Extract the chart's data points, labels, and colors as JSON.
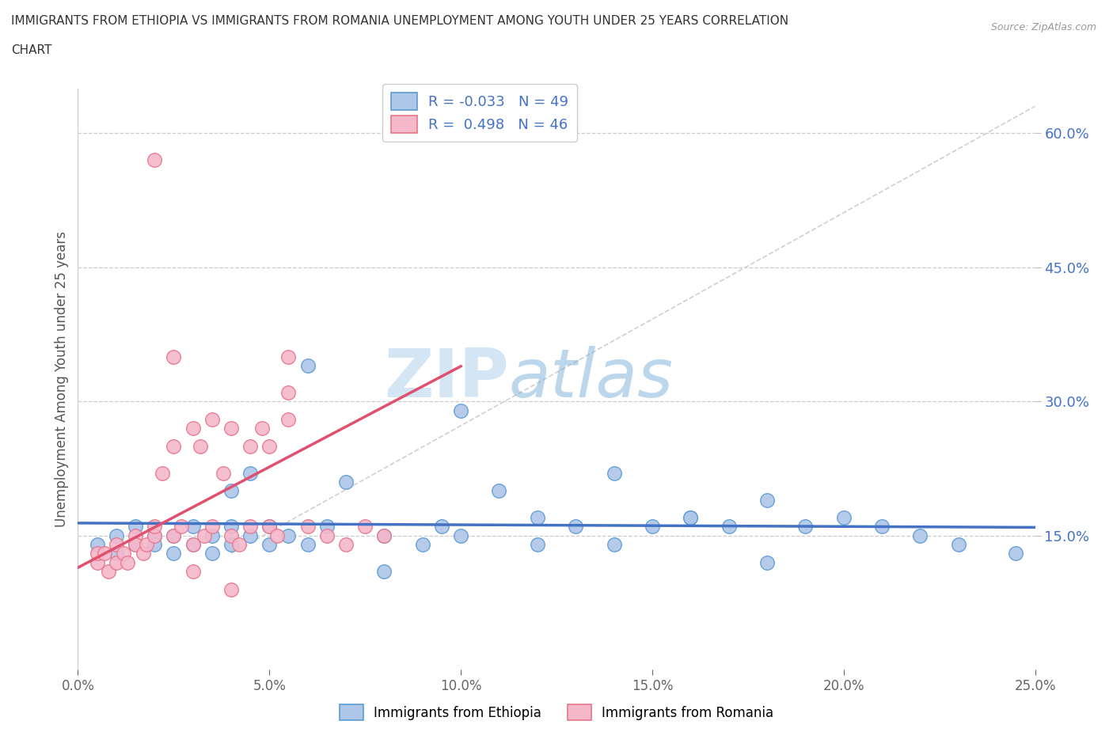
{
  "title_line1": "IMMIGRANTS FROM ETHIOPIA VS IMMIGRANTS FROM ROMANIA UNEMPLOYMENT AMONG YOUTH UNDER 25 YEARS CORRELATION",
  "title_line2": "CHART",
  "source": "Source: ZipAtlas.com",
  "ylabel": "Unemployment Among Youth under 25 years",
  "xlim": [
    0.0,
    0.25
  ],
  "ylim": [
    0.0,
    0.65
  ],
  "yticks": [
    0.15,
    0.3,
    0.45,
    0.6
  ],
  "ytick_labels": [
    "15.0%",
    "30.0%",
    "45.0%",
    "60.0%"
  ],
  "xticks": [
    0.0,
    0.05,
    0.1,
    0.15,
    0.2,
    0.25
  ],
  "xtick_labels": [
    "0.0%",
    "5.0%",
    "10.0%",
    "15.0%",
    "20.0%",
    "25.0%"
  ],
  "ethiopia_R": -0.033,
  "ethiopia_N": 49,
  "romania_R": 0.498,
  "romania_N": 46,
  "ethiopia_color": "#aec6e8",
  "romania_color": "#f5b8cb",
  "ethiopia_edge_color": "#5b9bd5",
  "romania_edge_color": "#e8758a",
  "ethiopia_line_color": "#4472c4",
  "romania_line_color": "#e05070",
  "ref_line_color": "#d0d0d0",
  "watermark": "ZIPatlas",
  "ethiopia_x": [
    0.005,
    0.01,
    0.01,
    0.015,
    0.015,
    0.02,
    0.02,
    0.025,
    0.025,
    0.03,
    0.03,
    0.035,
    0.035,
    0.04,
    0.04,
    0.04,
    0.045,
    0.045,
    0.05,
    0.05,
    0.055,
    0.06,
    0.065,
    0.07,
    0.08,
    0.09,
    0.095,
    0.1,
    0.11,
    0.12,
    0.13,
    0.14,
    0.15,
    0.16,
    0.17,
    0.18,
    0.19,
    0.2,
    0.21,
    0.22,
    0.23,
    0.14,
    0.16,
    0.18,
    0.12,
    0.08,
    0.1,
    0.06,
    0.245
  ],
  "ethiopia_y": [
    0.14,
    0.13,
    0.15,
    0.14,
    0.16,
    0.15,
    0.14,
    0.13,
    0.15,
    0.14,
    0.16,
    0.15,
    0.13,
    0.14,
    0.16,
    0.2,
    0.15,
    0.22,
    0.14,
    0.16,
    0.15,
    0.14,
    0.16,
    0.21,
    0.15,
    0.14,
    0.16,
    0.15,
    0.2,
    0.17,
    0.16,
    0.22,
    0.16,
    0.17,
    0.16,
    0.19,
    0.16,
    0.17,
    0.16,
    0.15,
    0.14,
    0.14,
    0.17,
    0.12,
    0.14,
    0.11,
    0.29,
    0.34,
    0.13
  ],
  "romania_x": [
    0.005,
    0.005,
    0.007,
    0.008,
    0.01,
    0.01,
    0.012,
    0.013,
    0.015,
    0.015,
    0.017,
    0.018,
    0.02,
    0.02,
    0.022,
    0.025,
    0.025,
    0.027,
    0.03,
    0.03,
    0.032,
    0.033,
    0.035,
    0.035,
    0.038,
    0.04,
    0.04,
    0.042,
    0.045,
    0.045,
    0.048,
    0.05,
    0.05,
    0.052,
    0.055,
    0.055,
    0.06,
    0.065,
    0.07,
    0.075,
    0.08,
    0.02,
    0.025,
    0.03,
    0.055,
    0.04
  ],
  "romania_y": [
    0.12,
    0.13,
    0.13,
    0.11,
    0.12,
    0.14,
    0.13,
    0.12,
    0.15,
    0.14,
    0.13,
    0.14,
    0.15,
    0.16,
    0.22,
    0.15,
    0.25,
    0.16,
    0.14,
    0.27,
    0.25,
    0.15,
    0.28,
    0.16,
    0.22,
    0.15,
    0.27,
    0.14,
    0.25,
    0.16,
    0.27,
    0.16,
    0.25,
    0.15,
    0.28,
    0.31,
    0.16,
    0.15,
    0.14,
    0.16,
    0.15,
    0.57,
    0.35,
    0.11,
    0.35,
    0.09
  ]
}
